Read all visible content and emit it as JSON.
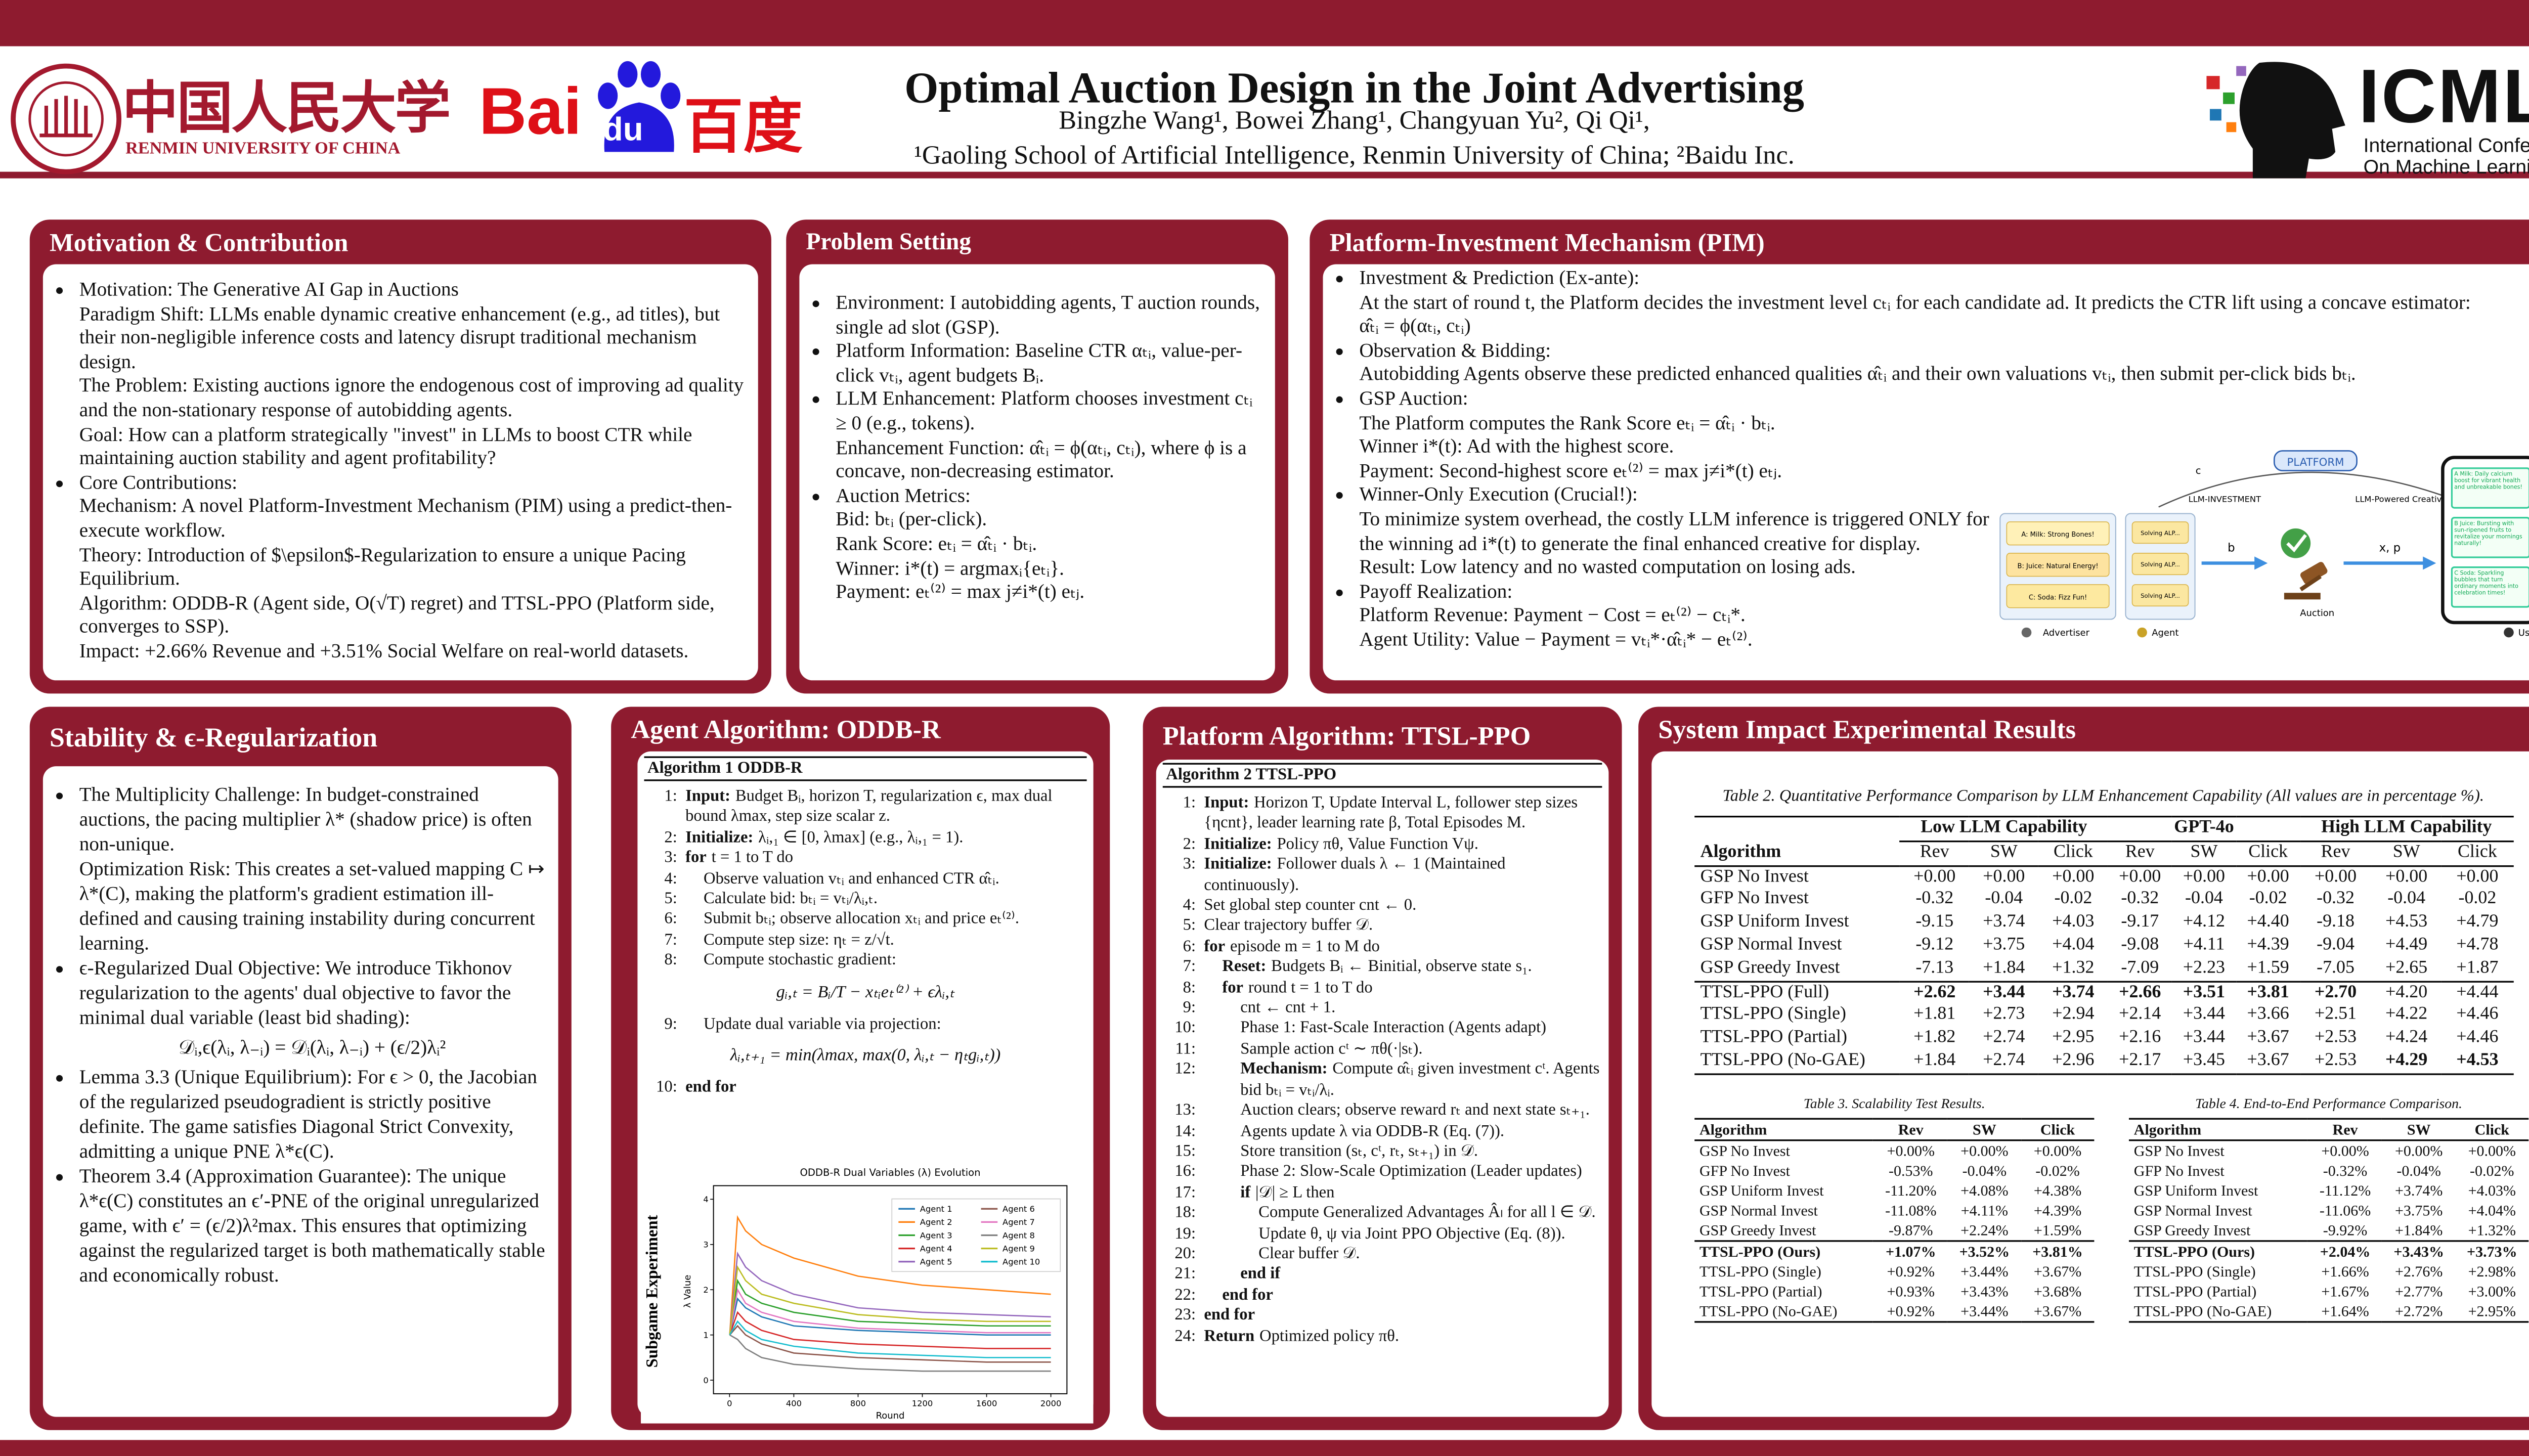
{
  "header": {
    "university_cn": "中国人民大学",
    "university_en": "RENMIN UNIVERSITY OF CHINA",
    "baidu_latin": "Bai",
    "baidu_paw": "du",
    "baidu_cn": "百度",
    "title": "Optimal Auction Design in the Joint Advertising",
    "authors": "Bingzhe Wang¹, Bowei Zhang¹, Changyuan Yu², Qi Qi¹,",
    "affiliations": "¹Gaoling School of Artificial Intelligence, Renmin University of China; ²Baidu Inc.",
    "icml": "ICML",
    "icml_sub": [
      "International Conference",
      "On Machine Learning"
    ]
  },
  "motivation": {
    "title": "Motivation & Contribution",
    "items": [
      {
        "head": "Motivation: The Generative AI Gap in Auctions",
        "lines": [
          "Paradigm Shift: LLMs enable dynamic creative enhancement (e.g., ad titles), but their non-negligible inference costs and latency disrupt traditional mechanism design.",
          "The Problem: Existing auctions ignore the endogenous cost of improving ad quality and the non-stationary response of autobidding agents.",
          "Goal: How can a platform strategically \"invest\" in LLMs to boost CTR while maintaining auction stability and agent profitability?"
        ]
      },
      {
        "head": "Core Contributions:",
        "lines": [
          "Mechanism: A novel Platform-Investment Mechanism (PIM) using a predict-then-execute workflow.",
          "Theory: Introduction of $\\epsilon$-Regularization to ensure a unique Pacing Equilibrium.",
          "Algorithm: ODDB-R (Agent side, O(√T) regret) and TTSL-PPO (Platform side, converges to SSP).",
          "Impact: +2.66% Revenue and +3.51% Social Welfare on real-world datasets."
        ]
      }
    ]
  },
  "problem": {
    "title": "Problem Setting",
    "items": [
      {
        "head": "Environment: I autobidding agents, T auction rounds, single ad slot (GSP)."
      },
      {
        "head": "Platform Information: Baseline CTR αₜᵢ, value-per-click vₜᵢ, agent budgets Bᵢ."
      },
      {
        "head": "LLM Enhancement: Platform chooses investment cₜᵢ ≥ 0 (e.g., tokens).",
        "lines": [
          "Enhancement Function: α̂ₜᵢ = ϕ(αₜᵢ, cₜᵢ), where ϕ is a concave, non-decreasing estimator."
        ]
      },
      {
        "head": "Auction Metrics:",
        "lines": [
          "Bid: bₜᵢ (per-click).",
          "Rank Score: eₜᵢ = α̂ₜᵢ · bₜᵢ.",
          "Winner: i*(t) = argmaxᵢ{eₜᵢ}.",
          "Payment: eₜ⁽²⁾ = max j≠i*(t) eₜⱼ."
        ]
      }
    ]
  },
  "pim": {
    "title": "Platform-Investment Mechanism (PIM)",
    "items": [
      {
        "head": "Investment & Prediction (Ex-ante):",
        "lines": [
          "At the start of round t, the Platform decides the investment level cₜᵢ for each candidate ad. It predicts the CTR lift using a concave estimator:",
          "α̂ₜᵢ = ϕ(αₜᵢ, cₜᵢ)"
        ]
      },
      {
        "head": "Observation & Bidding:",
        "lines": [
          "Autobidding Agents observe these predicted enhanced qualities α̂ₜᵢ and their own valuations vₜᵢ, then submit per-click bids bₜᵢ."
        ]
      },
      {
        "head": "GSP Auction:",
        "lines": [
          "The Platform computes the Rank Score eₜᵢ = α̂ₜᵢ · bₜᵢ.",
          "Winner i*(t): Ad with the highest score.",
          "Payment: Second-highest score eₜ⁽²⁾ = max j≠i*(t) eₜⱼ."
        ]
      },
      {
        "head": "Winner-Only Execution (Crucial!):",
        "lines": [
          "To minimize system overhead, the costly LLM inference is triggered ONLY for the winning ad i*(t) to generate the final enhanced creative for display.",
          "Result: Low latency and no wasted computation on losing ads."
        ]
      },
      {
        "head": "Payoff Realization:",
        "lines": [
          "Platform Revenue: Payment − Cost = eₜ⁽²⁾ − cₜᵢ*.",
          "Agent Utility: Value − Payment = vₜᵢ*·α̂ₜᵢ* − eₜ⁽²⁾."
        ]
      }
    ],
    "figure": {
      "platform": "PLATFORM",
      "c": "c",
      "llm_investment": "LLM-INVESTMENT",
      "llm_creatives": "LLM-Powered Creatives",
      "b": "b",
      "xp": "x, p",
      "auction": "Auction",
      "advertiser": "Advertiser",
      "agent": "Agent",
      "user": "User",
      "ads": [
        "A: Milk: Strong Bones!",
        "B: Juice: Natural Energy!",
        "C: Soda: Fizz Fun!"
      ],
      "agent_boxes": [
        "Solving ALP...",
        "Solving ALP...",
        "Solving ALP..."
      ],
      "phone_texts": [
        "A Milk: Daily calcium boost for vibrant health and unbreakable bones!",
        "B Juice: Bursting with sun-ripened fruits to revitalize your mornings naturally!",
        "C Soda: Sparkling bubbles that turn ordinary moments into celebration times!"
      ]
    }
  },
  "stability": {
    "title": "Stability & ϵ-Regularization",
    "items": [
      {
        "head": "The Multiplicity Challenge: In budget-constrained auctions, the pacing multiplier λ* (shadow price) is often non-unique.",
        "lines": [
          "Optimization Risk: This creates a set-valued mapping C ↦ λ*(C), making the platform's gradient estimation ill-defined and causing training instability during concurrent learning."
        ]
      },
      {
        "head": "ϵ-Regularized Dual Objective: We introduce Tikhonov regularization to the agents' dual objective to favor the minimal dual variable (least bid shading):",
        "equation": "𝒟ᵢ,ϵ(λᵢ, λ₋ᵢ) = 𝒟ᵢ(λᵢ, λ₋ᵢ) + (ϵ/2)λᵢ²"
      },
      {
        "head": "Lemma 3.3 (Unique Equilibrium): For ϵ > 0, the Jacobian of the regularized pseudogradient is strictly positive definite. The game satisfies Diagonal Strict Convexity, admitting a unique PNE λ*ϵ(C)."
      },
      {
        "head": "Theorem 3.4 (Approximation Guarantee): The unique λ*ϵ(C) constitutes an ϵ′-PNE of the original unregularized game, with ϵ′ = (ϵ/2)λ²max. This ensures that optimizing against the regularized target is both mathematically stable and economically robust."
      }
    ]
  },
  "agent_algorithm": {
    "title": "Agent Algorithm: ODDB-R",
    "caption": "Algorithm 1 ODDB-R",
    "lines": [
      {
        "n": "1:",
        "kw": "Input:",
        "text": "Budget Bᵢ, horizon T, regularization ϵ, max dual bound λmax, step size scalar z."
      },
      {
        "n": "2:",
        "kw": "Initialize:",
        "text": "λᵢ,₁ ∈ [0, λmax] (e.g., λᵢ,₁ = 1)."
      },
      {
        "n": "3:",
        "kw": "for",
        "text": "t = 1 to T do"
      },
      {
        "n": "4:",
        "text": "Observe valuation vₜᵢ and enhanced CTR α̂ₜᵢ."
      },
      {
        "n": "5:",
        "text": "Calculate bid: bₜᵢ = vₜᵢ/λᵢ,ₜ."
      },
      {
        "n": "6:",
        "text": "Submit bₜᵢ; observe allocation xₜᵢ and price eₜ⁽²⁾."
      },
      {
        "n": "7:",
        "text": "Compute step size: ηₜ = z/√t."
      },
      {
        "n": "8:",
        "text": "Compute stochastic gradient:",
        "eq": "gᵢ,ₜ = Bᵢ/T − xₜᵢeₜ⁽²⁾ + ϵλᵢ,ₜ"
      },
      {
        "n": "9:",
        "text": "Update dual variable via projection:",
        "eq": "λᵢ,ₜ₊₁ = min(λmax, max(0, λᵢ,ₜ − ηₜgᵢ,ₜ))"
      },
      {
        "n": "10:",
        "kw": "end for"
      }
    ],
    "figure": {
      "type": "line",
      "title": "ODDB-R Dual Variables (λ) Evolution",
      "side_label": "Subgame Experiment",
      "xlabel": "Round",
      "ylabel": "λ Value",
      "xlim": [
        -100,
        2100
      ],
      "ylim": [
        -0.3,
        4.3
      ],
      "xticks": [
        0,
        400,
        800,
        1200,
        1600,
        2000
      ],
      "yticks": [
        0,
        1,
        2,
        3,
        4
      ],
      "x": [
        1,
        50,
        100,
        200,
        400,
        800,
        1200,
        1600,
        2000
      ],
      "series": [
        {
          "name": "Agent 1",
          "color": "#1f77b4",
          "values": [
            1,
            1.8,
            1.6,
            1.4,
            1.2,
            1.1,
            1.05,
            1.0,
            1.0
          ]
        },
        {
          "name": "Agent 2",
          "color": "#ff7f0e",
          "values": [
            1,
            3.6,
            3.3,
            3.0,
            2.7,
            2.3,
            2.1,
            2.0,
            1.9
          ]
        },
        {
          "name": "Agent 3",
          "color": "#2ca02c",
          "values": [
            1,
            2.2,
            1.9,
            1.7,
            1.5,
            1.3,
            1.25,
            1.2,
            1.2
          ]
        },
        {
          "name": "Agent 4",
          "color": "#d62728",
          "values": [
            1,
            1.5,
            1.3,
            1.1,
            0.9,
            0.8,
            0.75,
            0.7,
            0.7
          ]
        },
        {
          "name": "Agent 5",
          "color": "#9467bd",
          "values": [
            1,
            2.8,
            2.5,
            2.2,
            1.9,
            1.6,
            1.5,
            1.45,
            1.4
          ]
        },
        {
          "name": "Agent 6",
          "color": "#8c564b",
          "values": [
            1,
            1.2,
            1.0,
            0.8,
            0.6,
            0.5,
            0.45,
            0.4,
            0.4
          ]
        },
        {
          "name": "Agent 7",
          "color": "#e377c2",
          "values": [
            1,
            2.0,
            1.7,
            1.5,
            1.3,
            1.15,
            1.1,
            1.05,
            1.05
          ]
        },
        {
          "name": "Agent 8",
          "color": "#7f7f7f",
          "values": [
            1,
            0.9,
            0.7,
            0.5,
            0.35,
            0.25,
            0.2,
            0.2,
            0.2
          ]
        },
        {
          "name": "Agent 9",
          "color": "#bcbd22",
          "values": [
            1,
            2.5,
            2.2,
            1.9,
            1.7,
            1.45,
            1.35,
            1.3,
            1.3
          ]
        },
        {
          "name": "Agent 10",
          "color": "#17becf",
          "values": [
            1,
            1.3,
            1.1,
            0.9,
            0.75,
            0.6,
            0.55,
            0.5,
            0.5
          ]
        }
      ]
    }
  },
  "platform_algorithm": {
    "title": "Platform Algorithm: TTSL-PPO",
    "caption": "Algorithm 2 TTSL-PPO",
    "lines": [
      {
        "n": "1:",
        "kw": "Input:",
        "text": "Horizon T, Update Interval L, follower step sizes {ηcnt}, leader learning rate β, Total Episodes M."
      },
      {
        "n": "2:",
        "kw": "Initialize:",
        "text": "Policy πθ, Value Function Vψ."
      },
      {
        "n": "3:",
        "kw": "Initialize:",
        "text": "Follower duals λ ← 1 (Maintained continuously)."
      },
      {
        "n": "4:",
        "text": "Set global step counter cnt ← 0."
      },
      {
        "n": "5:",
        "text": "Clear trajectory buffer 𝒟."
      },
      {
        "n": "6:",
        "kw": "for",
        "text": "episode m = 1 to M do"
      },
      {
        "n": "7:",
        "kw": "Reset:",
        "text": "Budgets Bᵢ ← Binitial, observe state s₁."
      },
      {
        "n": "8:",
        "kw": "for",
        "text": "round t = 1 to T do"
      },
      {
        "n": "9:",
        "text": "cnt ← cnt + 1."
      },
      {
        "n": "10:",
        "text": "Phase 1: Fast-Scale Interaction (Agents adapt)"
      },
      {
        "n": "11:",
        "text": "Sample action cᵗ ∼ πθ(·|sₜ)."
      },
      {
        "n": "12:",
        "kw": "Mechanism:",
        "text": "Compute α̂ₜᵢ given investment cᵗ. Agents bid bₜᵢ = vₜᵢ/λᵢ."
      },
      {
        "n": "13:",
        "text": "Auction clears; observe reward rₜ and next state sₜ₊₁."
      },
      {
        "n": "14:",
        "text": "Agents update λ via ODDB-R (Eq. (7))."
      },
      {
        "n": "15:",
        "text": "Store transition (sₜ, cᵗ, rₜ, sₜ₊₁) in 𝒟."
      },
      {
        "n": "16:",
        "text": "Phase 2: Slow-Scale Optimization (Leader updates)"
      },
      {
        "n": "17:",
        "kw": "if",
        "text": "|𝒟| ≥ L then"
      },
      {
        "n": "18:",
        "text": "Compute Generalized Advantages Âₗ for all l ∈ 𝒟."
      },
      {
        "n": "19:",
        "text": "Update θ, ψ via Joint PPO Objective (Eq. (8))."
      },
      {
        "n": "20:",
        "text": "Clear buffer 𝒟."
      },
      {
        "n": "21:",
        "kw": "end if"
      },
      {
        "n": "22:",
        "kw": "end for"
      },
      {
        "n": "23:",
        "kw": "end for"
      },
      {
        "n": "24:",
        "kw": "Return",
        "text": "Optimized policy πθ."
      }
    ]
  },
  "results": {
    "title": "System Impact Experimental Results",
    "table2": {
      "caption": "Table 2. Quantitative Performance Comparison by LLM Enhancement Capability (All values are in percentage %).",
      "first_col": "Algorithm",
      "groups": [
        "Low LLM Capability",
        "GPT-4o",
        "High LLM Capability"
      ],
      "columns": [
        "Rev",
        "SW",
        "Click"
      ],
      "rows": [
        {
          "name": "GSP No Invest",
          "cells": [
            "+0.00",
            "+0.00",
            "+0.00",
            "+0.00",
            "+0.00",
            "+0.00",
            "+0.00",
            "+0.00",
            "+0.00"
          ]
        },
        {
          "name": "GFP No Invest",
          "cells": [
            "-0.32",
            "-0.04",
            "-0.02",
            "-0.32",
            "-0.04",
            "-0.02",
            "-0.32",
            "-0.04",
            "-0.02"
          ]
        },
        {
          "name": "GSP Uniform Invest",
          "cells": [
            "-9.15",
            "+3.74",
            "+4.03",
            "-9.17",
            "+4.12",
            "+4.40",
            "-9.18",
            "+4.53",
            "+4.79"
          ]
        },
        {
          "name": "GSP Normal Invest",
          "cells": [
            "-9.12",
            "+3.75",
            "+4.04",
            "-9.08",
            "+4.11",
            "+4.39",
            "-9.04",
            "+4.49",
            "+4.78"
          ]
        },
        {
          "name": "GSP Greedy Invest",
          "cells": [
            "-7.13",
            "+1.84",
            "+1.32",
            "-7.09",
            "+2.23",
            "+1.59",
            "-7.05",
            "+2.65",
            "+1.87"
          ]
        },
        {
          "name": "TTSL-PPO (Full)",
          "cells": [
            "+2.62",
            "+3.44",
            "+3.74",
            "+2.66",
            "+3.51",
            "+3.81",
            "+2.70",
            "+4.20",
            "+4.44"
          ]
        },
        {
          "name": "TTSL-PPO (Single)",
          "cells": [
            "+1.81",
            "+2.73",
            "+2.94",
            "+2.14",
            "+3.44",
            "+3.66",
            "+2.51",
            "+4.22",
            "+4.46"
          ]
        },
        {
          "name": "TTSL-PPO (Partial)",
          "cells": [
            "+1.82",
            "+2.74",
            "+2.95",
            "+2.16",
            "+3.44",
            "+3.67",
            "+2.53",
            "+4.24",
            "+4.46"
          ]
        },
        {
          "name": "TTSL-PPO (No-GAE)",
          "cells": [
            "+1.84",
            "+2.74",
            "+2.96",
            "+2.17",
            "+3.45",
            "+3.67",
            "+2.53",
            "+4.29",
            "+4.53"
          ]
        }
      ]
    },
    "table3": {
      "caption": "Table 3. Scalability Test Results.",
      "columns": [
        "Algorithm",
        "Rev",
        "SW",
        "Click"
      ],
      "rows": [
        [
          "GSP No Invest",
          "+0.00%",
          "+0.00%",
          "+0.00%"
        ],
        [
          "GFP No Invest",
          "-0.53%",
          "-0.04%",
          "-0.02%"
        ],
        [
          "GSP Uniform Invest",
          "-11.20%",
          "+4.08%",
          "+4.38%"
        ],
        [
          "GSP Normal Invest",
          "-11.08%",
          "+4.11%",
          "+4.39%"
        ],
        [
          "GSP Greedy Invest",
          "-9.87%",
          "+2.24%",
          "+1.59%"
        ],
        [
          "TTSL-PPO (Ours)",
          "+1.07%",
          "+3.52%",
          "+3.81%"
        ],
        [
          "TTSL-PPO (Single)",
          "+0.92%",
          "+3.44%",
          "+3.67%"
        ],
        [
          "TTSL-PPO (Partial)",
          "+0.93%",
          "+3.43%",
          "+3.68%"
        ],
        [
          "TTSL-PPO (No-GAE)",
          "+0.92%",
          "+3.44%",
          "+3.67%"
        ]
      ]
    },
    "table4": {
      "caption": "Table 4. End-to-End Performance Comparison.",
      "columns": [
        "Algorithm",
        "Rev",
        "SW",
        "Click"
      ],
      "rows": [
        [
          "GSP No Invest",
          "+0.00%",
          "+0.00%",
          "+0.00%"
        ],
        [
          "GFP No Invest",
          "-0.32%",
          "-0.04%",
          "-0.02%"
        ],
        [
          "GSP Uniform Invest",
          "-11.12%",
          "+3.74%",
          "+4.03%"
        ],
        [
          "GSP Normal Invest",
          "-11.06%",
          "+3.75%",
          "+4.04%"
        ],
        [
          "GSP Greedy Invest",
          "-9.92%",
          "+1.84%",
          "+1.32%"
        ],
        [
          "TTSL-PPO (Ours)",
          "+2.04%",
          "+3.43%",
          "+3.73%"
        ],
        [
          "TTSL-PPO (Single)",
          "+1.66%",
          "+2.76%",
          "+2.98%"
        ],
        [
          "TTSL-PPO (Partial)",
          "+1.67%",
          "+2.77%",
          "+3.00%"
        ],
        [
          "TTSL-PPO (No-GAE)",
          "+1.64%",
          "+2.72%",
          "+2.95%"
        ]
      ]
    }
  }
}
